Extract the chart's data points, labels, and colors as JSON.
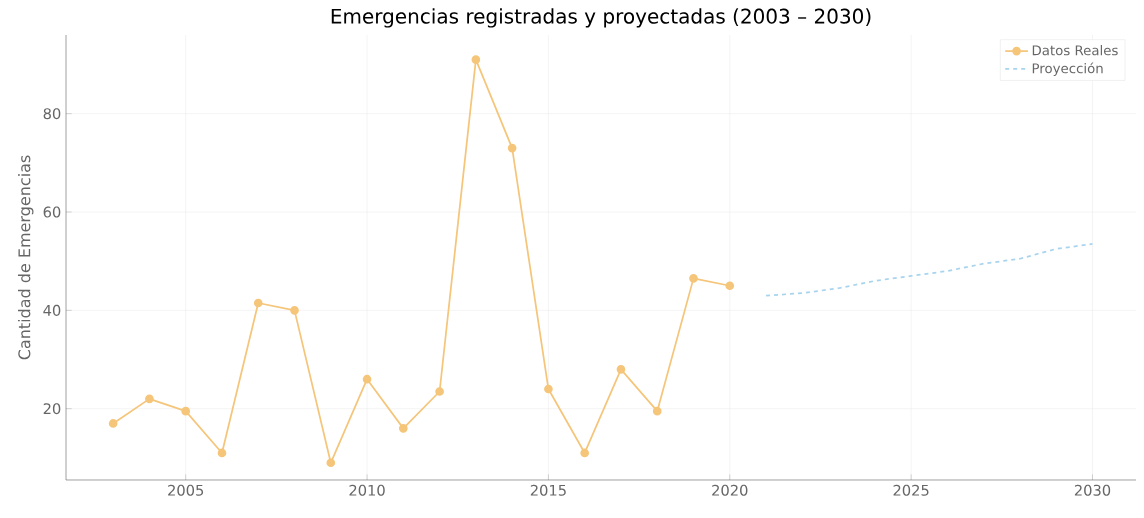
{
  "chart_data": {
    "type": "line",
    "title": "Emergencias registradas y proyectadas (2003 – 2030)",
    "ylabel": "Cantidad de Emergencias",
    "xlim": [
      2001.7,
      2031.2
    ],
    "ylim": [
      5.5,
      96
    ],
    "xticks": [
      2005,
      2010,
      2015,
      2020,
      2025,
      2030
    ],
    "yticks": [
      20,
      40,
      60,
      80
    ],
    "grid": true,
    "legend": "top right",
    "series": [
      {
        "name": "Datos Reales",
        "color": "#f5c57a",
        "marker": "circle",
        "line_style": "solid",
        "x": [
          2003,
          2004,
          2005,
          2006,
          2007,
          2008,
          2009,
          2010,
          2011,
          2012,
          2013,
          2014,
          2015,
          2016,
          2017,
          2018,
          2019,
          2020
        ],
        "values": [
          17,
          22,
          19.5,
          11,
          41.5,
          40,
          9,
          26,
          16,
          23.5,
          91,
          73,
          24,
          11,
          28,
          19.5,
          46.5,
          45
        ]
      },
      {
        "name": "Proyección",
        "color": "#a8d4ee",
        "marker": "none",
        "line_style": "dashed",
        "x": [
          2021,
          2022,
          2023,
          2024,
          2025,
          2026,
          2027,
          2028,
          2029,
          2030
        ],
        "values": [
          43,
          43.5,
          44.5,
          46,
          47,
          48,
          49.5,
          50.5,
          52.5,
          53.5
        ]
      }
    ]
  }
}
